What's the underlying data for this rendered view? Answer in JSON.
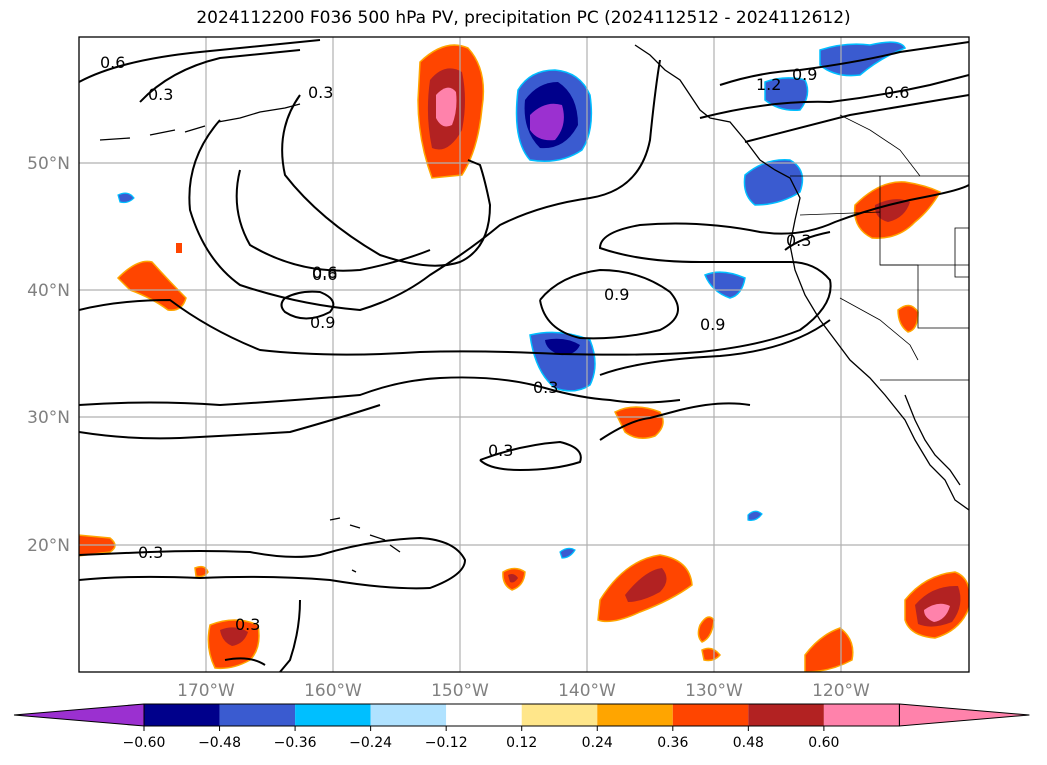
{
  "title": "2024112200 F036 500 hPa PV, precipitation PC (2024112512 - 2024112612)",
  "lat_ticks": [
    "50°N",
    "40°N",
    "30°N",
    "20°N"
  ],
  "lon_ticks": [
    "170°W",
    "160°W",
    "150°W",
    "140°W",
    "130°W",
    "120°W"
  ],
  "pv_contour_labels": [
    "0.6",
    "0.3",
    "0.3",
    "0.6",
    "1.2",
    "0.9",
    "0.6",
    "0.3",
    "0.6",
    "0.9",
    "0.9",
    "0.9",
    "0.3",
    "0.3",
    "0.3",
    "0.3"
  ],
  "colorbar": {
    "ticks": [
      "−0.60",
      "−0.48",
      "−0.36",
      "−0.24",
      "−0.12",
      "0.12",
      "0.24",
      "0.36",
      "0.48",
      "0.60"
    ],
    "colors": [
      "#9b30d0",
      "#00008b",
      "#3a5bd0",
      "#00bfff",
      "#b0e2ff",
      "#ffffff",
      "#ffe68a",
      "#ffa500",
      "#ff4500",
      "#b22222",
      "#ff82ab",
      "#ff82ab"
    ]
  }
}
